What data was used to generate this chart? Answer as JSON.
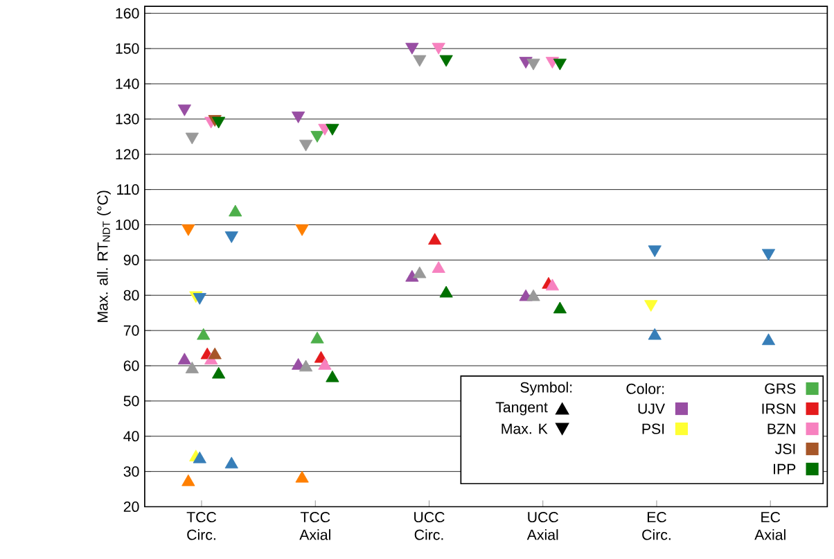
{
  "chart_data": {
    "type": "scatter",
    "ylabel": "Max. all. RT$_{NDT}$ (°C)",
    "categories": [
      "TCC Circ.",
      "TCC Axial",
      "UCC Circ.",
      "UCC Axial",
      "EC Circ.",
      "EC Axial"
    ],
    "ylim": [
      20,
      162
    ],
    "yticks": [
      20,
      30,
      40,
      50,
      60,
      70,
      80,
      90,
      100,
      110,
      120,
      130,
      140,
      150,
      160
    ],
    "grid": "y",
    "legend": "bottom right",
    "legend_title": "Color:",
    "annotations": [
      "Symbol:",
      "Tangent",
      "Max. K"
    ],
    "series": [
      {
        "name": "UJV",
        "color": "#984ea3",
        "marker": "triangle",
        "x": [
          "TCC Circ.",
          "TCC Axial",
          "UCC Circ.",
          "UCC Axial"
        ],
        "values": [
          61.5,
          60,
          85,
          79.5
        ]
      },
      {
        "color": "#984ea3",
        "marker": "triangle-down",
        "x": [
          "TCC Circ.",
          "TCC Axial",
          "UCC Circ.",
          "UCC Axial"
        ],
        "values": [
          133,
          131,
          150.5,
          146.5
        ]
      },
      {
        "color": "#ff7f00",
        "marker": "triangle",
        "x": [
          "TCC Circ.",
          "TCC Axial"
        ],
        "values": [
          27,
          28
        ]
      },
      {
        "color": "#ff7f00",
        "marker": "triangle-down",
        "x": [
          "TCC Circ.",
          "TCC Axial"
        ],
        "values": [
          99,
          99
        ]
      },
      {
        "color": "#999999",
        "marker": "triangle",
        "x": [
          "TCC Circ.",
          "TCC Axial",
          "UCC Circ.",
          "UCC Axial"
        ],
        "values": [
          59,
          59.5,
          86,
          79.5
        ]
      },
      {
        "color": "#999999",
        "marker": "triangle-down",
        "x": [
          "TCC Circ.",
          "TCC Axial",
          "UCC Circ.",
          "UCC Axial"
        ],
        "values": [
          125,
          123,
          147,
          146
        ]
      },
      {
        "name": "PSI",
        "color": "#ffff33",
        "marker": "triangle",
        "x": [
          "TCC Circ."
        ],
        "values": [
          34
        ]
      },
      {
        "color": "#ffff33",
        "marker": "triangle-down",
        "x": [
          "TCC Circ.",
          "EC Circ."
        ],
        "values": [
          80,
          77.5
        ]
      },
      {
        "color": "#377eb8",
        "marker": "triangle",
        "x": [
          "TCC Circ.",
          "TCC Circ.",
          "EC Circ.",
          "EC Axial"
        ],
        "values": [
          33.5,
          32,
          68.5,
          67
        ]
      },
      {
        "color": "#377eb8",
        "marker": "triangle-down",
        "x": [
          "TCC Circ.",
          "TCC Circ.",
          "EC Circ.",
          "EC Axial"
        ],
        "values": [
          79.5,
          97,
          93,
          92
        ]
      },
      {
        "name": "GRS",
        "color": "#4daf4a",
        "marker": "triangle",
        "x": [
          "TCC Circ.",
          "TCC Circ.",
          "TCC Axial"
        ],
        "values": [
          68.5,
          103.5,
          67.5
        ]
      },
      {
        "color": "#4daf4a",
        "marker": "triangle-down",
        "x": [
          "TCC Axial"
        ],
        "values": [
          125.5
        ]
      },
      {
        "name": "IRSN",
        "color": "#e41a1c",
        "marker": "triangle",
        "x": [
          "TCC Circ.",
          "TCC Axial",
          "UCC Circ.",
          "UCC Axial"
        ],
        "values": [
          63,
          62,
          95.5,
          83
        ]
      },
      {
        "name": "BZN",
        "color": "#f781bf",
        "marker": "triangle",
        "x": [
          "TCC Circ.",
          "TCC Axial",
          "UCC Circ.",
          "UCC Axial"
        ],
        "values": [
          61.5,
          60,
          87.5,
          82.5
        ]
      },
      {
        "color": "#f781bf",
        "marker": "triangle-down",
        "x": [
          "TCC Circ.",
          "TCC Axial",
          "UCC Circ.",
          "UCC Axial"
        ],
        "values": [
          129.5,
          127.5,
          150.5,
          146.5
        ]
      },
      {
        "name": "JSI",
        "color": "#a65628",
        "marker": "triangle",
        "x": [
          "TCC Circ."
        ],
        "values": [
          63
        ]
      },
      {
        "color": "#a65628",
        "marker": "triangle-down",
        "x": [
          "TCC Circ."
        ],
        "values": [
          130
        ]
      },
      {
        "name": "IPP",
        "color": "#007000",
        "marker": "triangle",
        "x": [
          "TCC Circ.",
          "TCC Axial",
          "UCC Circ.",
          "UCC Axial"
        ],
        "values": [
          57.5,
          56.5,
          80.5,
          76
        ]
      },
      {
        "color": "#007000",
        "marker": "triangle-down",
        "x": [
          "TCC Circ.",
          "TCC Axial",
          "UCC Circ.",
          "UCC Axial"
        ],
        "values": [
          129.5,
          127.5,
          147,
          146
        ]
      }
    ]
  }
}
